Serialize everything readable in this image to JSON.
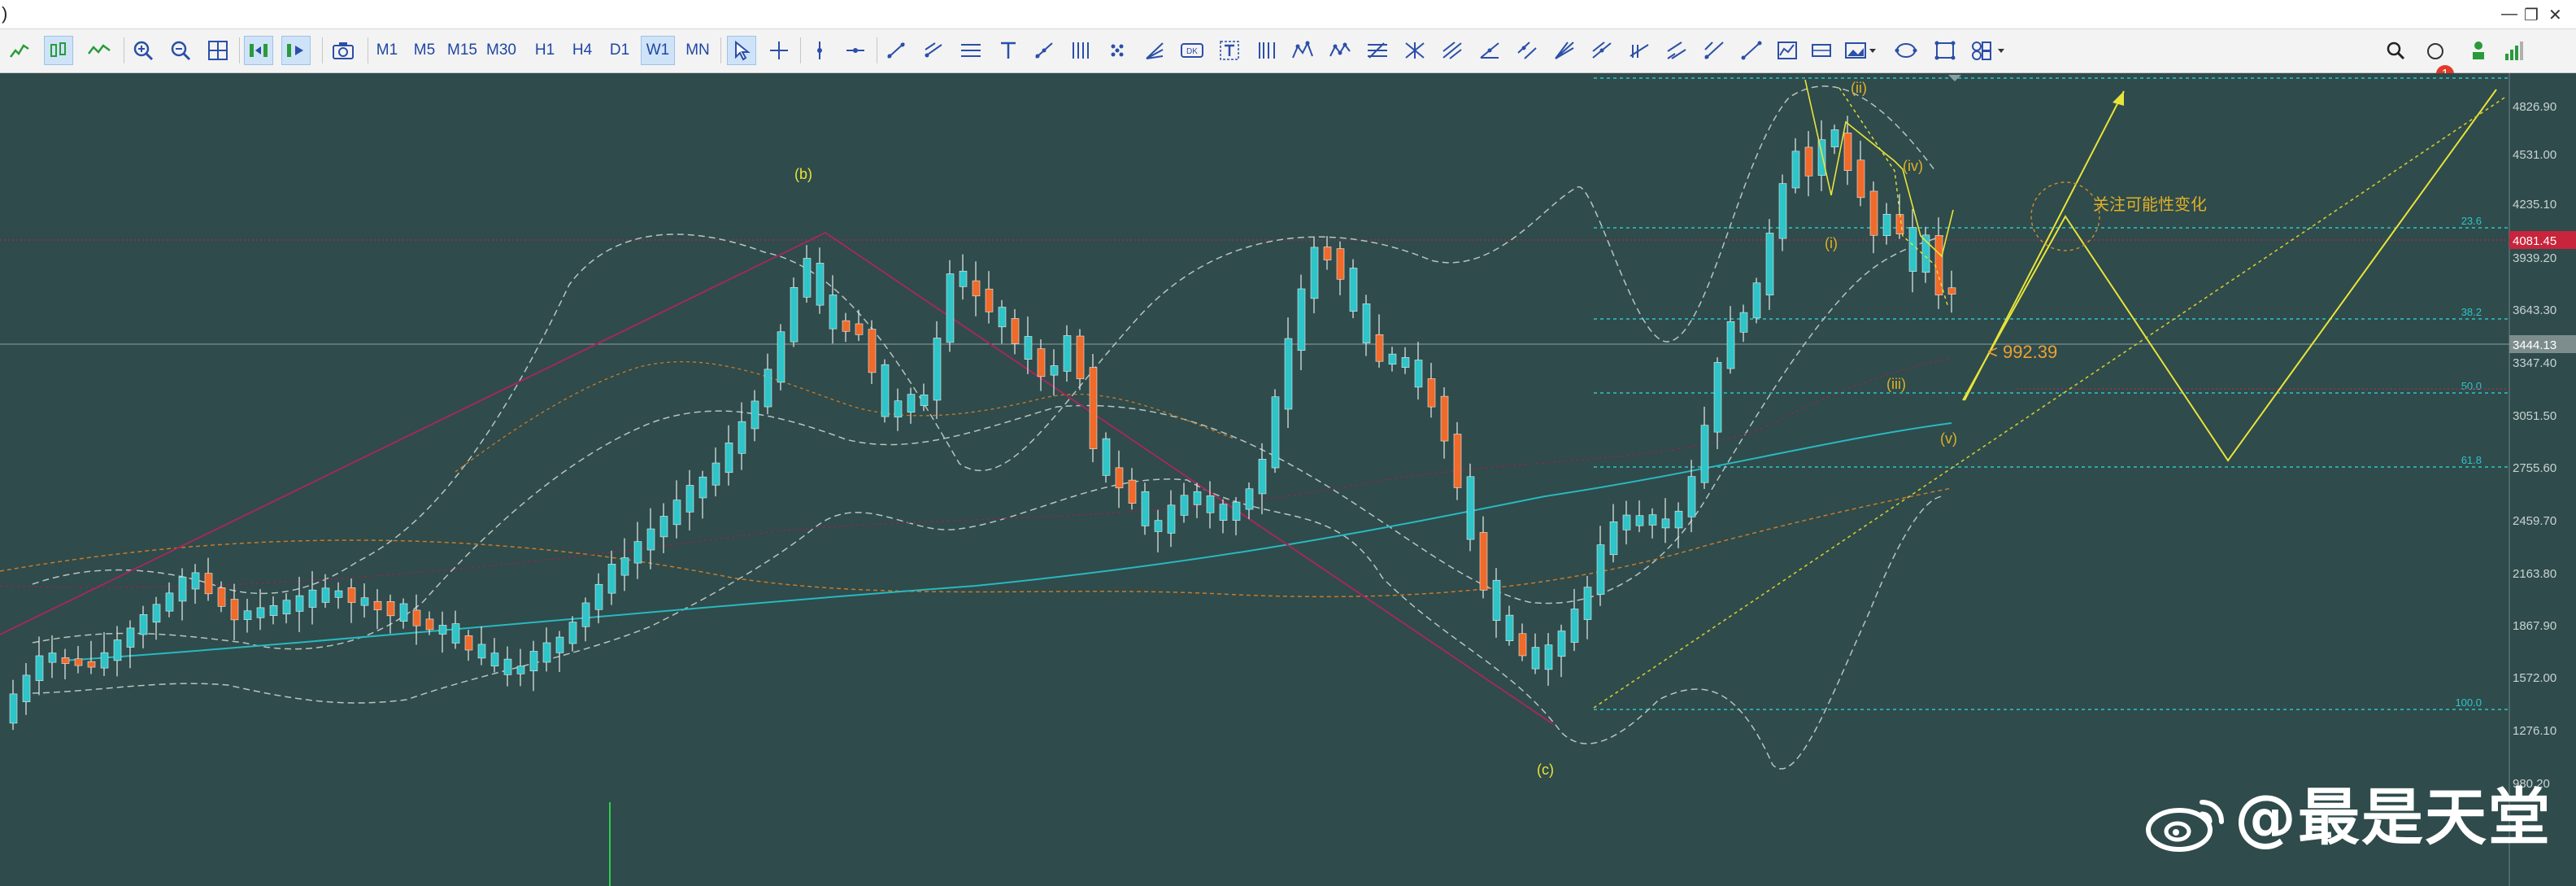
{
  "titlebar": {
    "left_fragment": ")",
    "window_controls": [
      "—",
      "❐",
      "✕"
    ]
  },
  "toolbar": {
    "timeframes": [
      "M1",
      "M5",
      "M15",
      "M30",
      "H1",
      "H4",
      "D1",
      "W1",
      "MN"
    ],
    "selected_timeframe": "W1",
    "notification_count": "1",
    "icons": [
      "line-chart-icon",
      "candle-chart-icon",
      "bar-chart-icon",
      "zoom-in-icon",
      "zoom-out-icon",
      "grid-icon",
      "autoscroll-icon",
      "chart-shift-icon",
      "screenshot-icon",
      "cursor-icon",
      "crosshair-icon",
      "vertical-line-icon",
      "horizontal-line-icon",
      "trendline-icon",
      "ray-icon",
      "channel-icon",
      "text-icon",
      "arrow-line-icon",
      "pitchfork-icon",
      "andrews-icon",
      "fan-icon",
      "label-icon",
      "text-label-icon",
      "fibo-timezones-icon",
      "elliott-icon",
      "fibo-retracement-icon",
      "gann-icon",
      "cycle-lines-icon",
      "shapes-icon",
      "more-icon"
    ]
  },
  "axis": {
    "price_labels": [
      "4826.90",
      "4531.00",
      "4235.10",
      "3939.20",
      "3643.30",
      "3347.40",
      "3051.50",
      "2755.60",
      "2459.70",
      "2163.80",
      "1867.90",
      "1572.00",
      "1276.10",
      "980.20"
    ],
    "current_price": "3444.13",
    "red_price": "4081.45"
  },
  "fib_levels": [
    "23.6",
    "38.2",
    "50.0",
    "61.8",
    "100.0"
  ],
  "wave_labels": {
    "b": "(b)",
    "c": "(c)",
    "i": "(i)",
    "ii": "(ii)",
    "iii": "(iii)",
    "iv": "(iv)",
    "v": "(v)"
  },
  "annotations": {
    "watch_note": "关注可能性变化",
    "level_note": "< 992.39"
  },
  "watermark": {
    "text": "@最是天堂"
  },
  "colors": {
    "background": "#2f4b4b",
    "bull": "#2ec4c8",
    "bear": "#f06a2a",
    "ma_cyan": "#29b8c0",
    "ma_orange": "#c87a2a",
    "fib": "#2ec4c8",
    "projection": "#e8e43a",
    "red_line": "#b02a4a"
  }
}
